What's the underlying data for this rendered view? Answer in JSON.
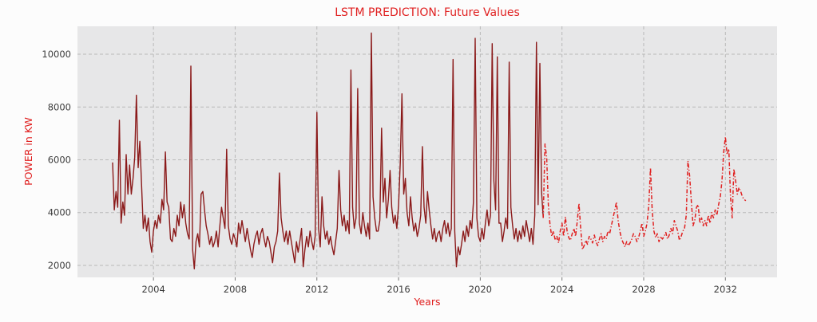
{
  "colors": {
    "accent_red": "#e02020",
    "history_line": "#8b1a1a",
    "forecast_line": "#e02020",
    "plot_bg": "#e7e7e8",
    "grid": "#b9b9b9",
    "tick_text": "#3b3b3b",
    "figure_bg": "#fcfcfc"
  },
  "chart_data": {
    "type": "line",
    "title": "LSTM PREDICTION: Future Values",
    "xlabel": "Years",
    "ylabel": "POWER in KW",
    "x_ticks": [
      2004,
      2008,
      2012,
      2016,
      2020,
      2024,
      2028,
      2032
    ],
    "y_ticks": [
      2000,
      4000,
      6000,
      8000,
      10000
    ],
    "xlim": [
      2000.28,
      2034.53
    ],
    "ylim": [
      1547,
      11057
    ],
    "grid": "dashed",
    "legend": "none",
    "x_step_months": 1,
    "series": [
      {
        "name": "historical-power",
        "color": "#8b1a1a",
        "style": "solid",
        "start_year": 2002.0,
        "values": [
          5900,
          4100,
          4800,
          4200,
          7500,
          3600,
          4400,
          3900,
          6200,
          4700,
          5800,
          4700,
          5300,
          6100,
          8450,
          5700,
          6700,
          5100,
          3400,
          3900,
          3300,
          3800,
          2900,
          2500,
          3300,
          3700,
          3400,
          3900,
          3600,
          4500,
          4100,
          6300,
          4400,
          4200,
          3000,
          2900,
          3400,
          3100,
          3900,
          3500,
          4400,
          3800,
          4300,
          3600,
          3200,
          3000,
          9550,
          2600,
          1870,
          2900,
          3200,
          2700,
          4700,
          4800,
          4100,
          3500,
          3200,
          2800,
          3100,
          2700,
          2900,
          3300,
          2700,
          3500,
          4200,
          3800,
          3400,
          6400,
          3500,
          3000,
          2800,
          3200,
          3000,
          2700,
          3600,
          3200,
          3700,
          3300,
          2900,
          3400,
          3000,
          2600,
          2300,
          2800,
          3100,
          3300,
          2800,
          3200,
          3400,
          3000,
          2700,
          3100,
          2900,
          2500,
          2100,
          2700,
          2900,
          3300,
          5500,
          3800,
          3300,
          2900,
          3300,
          2800,
          3300,
          2900,
          2500,
          2100,
          2900,
          2500,
          2900,
          3400,
          1950,
          2600,
          3100,
          2700,
          3300,
          2900,
          2600,
          3100,
          7800,
          3400,
          2700,
          4600,
          3500,
          3000,
          3300,
          2800,
          3100,
          2700,
          2400,
          2900,
          3400,
          5600,
          4100,
          3500,
          3900,
          3300,
          3700,
          3200,
          9400,
          4200,
          3400,
          3800,
          8700,
          3600,
          3200,
          4000,
          3500,
          3100,
          3600,
          3000,
          10800,
          4600,
          3800,
          3300,
          3300,
          3700,
          7200,
          4400,
          5300,
          3800,
          4500,
          5600,
          4200,
          3600,
          3900,
          3400,
          4300,
          5900,
          8500,
          4700,
          5300,
          4000,
          3500,
          4600,
          3800,
          3300,
          3600,
          3100,
          3400,
          3900,
          6500,
          4200,
          3600,
          4800,
          4100,
          3500,
          3000,
          3400,
          2900,
          3200,
          3300,
          2900,
          3400,
          3700,
          3200,
          3600,
          3100,
          3400,
          9800,
          3300,
          1950,
          2700,
          2400,
          2800,
          3300,
          2900,
          3500,
          3100,
          3700,
          3400,
          4400,
          10600,
          3800,
          3100,
          2900,
          3400,
          3000,
          3600,
          4100,
          3500,
          3900,
          10400,
          5200,
          4100,
          9900,
          3600,
          3600,
          2900,
          3300,
          3800,
          3400,
          9700,
          4200,
          3500,
          3000,
          3400,
          2900,
          3300,
          3000,
          3500,
          3100,
          3700,
          3300,
          2900,
          3400,
          2800,
          3900,
          10450,
          4300,
          9650,
          4800,
          3800
        ]
      },
      {
        "name": "lstm-future-prediction",
        "color": "#e02020",
        "style": "dashdot",
        "start_year": 2023.0833,
        "values": [
          3800,
          6600,
          6100,
          4300,
          3500,
          3100,
          3300,
          2950,
          3100,
          2850,
          3300,
          3600,
          3100,
          3840,
          3300,
          3050,
          2950,
          3200,
          3400,
          3100,
          3700,
          4350,
          3400,
          2600,
          2750,
          2950,
          2800,
          3100,
          3000,
          2850,
          3150,
          2900,
          2750,
          3000,
          3200,
          2900,
          3100,
          3000,
          3300,
          3200,
          3500,
          3800,
          4100,
          4400,
          3700,
          3300,
          3000,
          2850,
          2700,
          2900,
          2750,
          2850,
          3000,
          3200,
          3100,
          2900,
          3050,
          3300,
          3600,
          3100,
          3300,
          3600,
          4300,
          5700,
          4100,
          3300,
          3050,
          3200,
          2900,
          3100,
          3000,
          3100,
          3250,
          3000,
          3150,
          3400,
          3200,
          3700,
          3500,
          3300,
          2950,
          3100,
          3300,
          3400,
          3900,
          5960,
          5400,
          4400,
          3500,
          3700,
          4200,
          4300,
          3600,
          3800,
          3500,
          3700,
          3500,
          3900,
          3600,
          4000,
          3800,
          4100,
          3900,
          4300,
          4600,
          5200,
          6300,
          6870,
          6200,
          6410,
          4600,
          3800,
          5650,
          5200,
          4700,
          4950,
          4800,
          4600,
          4500,
          4450
        ]
      }
    ]
  }
}
